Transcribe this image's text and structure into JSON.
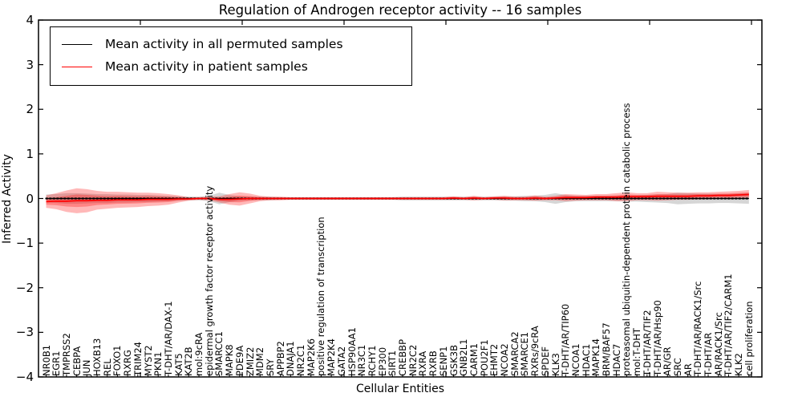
{
  "chart_data": {
    "type": "line",
    "title": "Regulation of Androgen receptor activity -- 16 samples",
    "xlabel": "Cellular Entities",
    "ylabel": "Inferred Activity",
    "ylim": [
      -4,
      4
    ],
    "yticks": [
      4,
      3,
      2,
      1,
      0,
      -1,
      -2,
      -3,
      -4
    ],
    "x_major_tick_every": 10,
    "legend_position": "upper left",
    "grid": false,
    "colors": {
      "permuted": "#000000",
      "patient": "#ff0000",
      "permuted_band": "rgba(128,128,128,0.32)",
      "patient_band": "rgba(255,0,0,0.28)",
      "background": "#ffffff"
    },
    "categories": [
      "NR0B1",
      "EGR1",
      "TMPRSS2",
      "CEBPA",
      "JUN",
      "HOXB13",
      "REL",
      "FOXO1",
      "RXRG",
      "TRIM24",
      "MYST2",
      "PKN1",
      "T-DHT/AR/DAX-1",
      "KAT5",
      "KAT2B",
      "mol:9cRA",
      "epidermal growth factor receptor activity",
      "SMARCC1",
      "MAPK8",
      "PDE9A",
      "ZMIZ2",
      "MDM2",
      "SRY",
      "APPBP2",
      "DNAJA1",
      "NR2C1",
      "MAP2K6",
      "positive regulation of transcription",
      "MAP2K4",
      "GATA2",
      "HSP90AA1",
      "NR3C1",
      "RCHY1",
      "EP300",
      "SIRT1",
      "CREBBP",
      "NR2C2",
      "RXRA",
      "RXRB",
      "SENP1",
      "GSK3B",
      "GNB2L1",
      "CARM1",
      "POU2F1",
      "EHMT2",
      "NCOA2",
      "SMARCA2",
      "SMARCE1",
      "RXRs/9cRA",
      "SPDEF",
      "KLK3",
      "T-DHT/AR/TIP60",
      "NCOA1",
      "HDAC1",
      "MAPK14",
      "BRM/BAF57",
      "HDAC7",
      "proteasomal ubiquitin-dependent protein catabolic process",
      "mol:T-DHT",
      "T-DHT/AR/TIF2",
      "T-DHT/AR/Hsp90",
      "AR/GR",
      "SRC",
      "AR",
      "T-DHT/AR/RACK1/Src",
      "T-DHT/AR",
      "AR/RACK1/Src",
      "T-DHT/AR/TIF2/CARM1",
      "KLK2",
      "cell proliferation"
    ],
    "series": [
      {
        "name": "Mean activity in all permuted samples",
        "color": "#000000",
        "mean": 0,
        "std": [
          0.09,
          0.1,
          0.12,
          0.12,
          0.11,
          0.1,
          0.1,
          0.09,
          0.09,
          0.08,
          0.08,
          0.07,
          0.06,
          0.05,
          0.04,
          0.04,
          0.06,
          0.13,
          0.08,
          0.05,
          0.04,
          0.04,
          0.04,
          0.03,
          0.03,
          0.03,
          0.03,
          0.03,
          0.03,
          0.03,
          0.03,
          0.03,
          0.03,
          0.03,
          0.03,
          0.04,
          0.04,
          0.04,
          0.04,
          0.04,
          0.04,
          0.04,
          0.04,
          0.04,
          0.04,
          0.05,
          0.05,
          0.06,
          0.06,
          0.08,
          0.12,
          0.08,
          0.06,
          0.06,
          0.06,
          0.06,
          0.06,
          0.07,
          0.07,
          0.08,
          0.09,
          0.1,
          0.13,
          0.12,
          0.11,
          0.11,
          0.1,
          0.1,
          0.11,
          0.12
        ]
      },
      {
        "name": "Mean activity in patient samples",
        "color": "#ff0000",
        "mean": [
          -0.07,
          -0.06,
          -0.06,
          -0.05,
          -0.05,
          -0.04,
          -0.04,
          -0.03,
          -0.03,
          -0.03,
          -0.02,
          -0.02,
          -0.02,
          -0.01,
          -0.01,
          0,
          0,
          -0.02,
          -0.02,
          -0.01,
          0,
          0,
          0,
          0,
          0,
          0,
          0,
          0,
          0,
          0,
          0,
          0,
          0,
          0,
          0,
          0,
          0,
          0,
          0,
          0,
          0.01,
          0,
          0.01,
          0,
          0.01,
          0.01,
          0,
          0,
          0.01,
          0,
          0.01,
          0.02,
          0.02,
          0.02,
          0.03,
          0.03,
          0.03,
          0.04,
          0.04,
          0.04,
          0.05,
          0.05,
          0.05,
          0.05,
          0.06,
          0.06,
          0.07,
          0.07,
          0.08,
          0.09
        ],
        "std": [
          0.14,
          0.18,
          0.24,
          0.28,
          0.26,
          0.21,
          0.19,
          0.18,
          0.17,
          0.16,
          0.15,
          0.14,
          0.12,
          0.08,
          0.04,
          0.03,
          0.04,
          0.07,
          0.12,
          0.15,
          0.11,
          0.06,
          0.04,
          0.04,
          0.03,
          0.03,
          0.03,
          0.03,
          0.03,
          0.03,
          0.03,
          0.03,
          0.03,
          0.03,
          0.03,
          0.03,
          0.03,
          0.03,
          0.03,
          0.03,
          0.04,
          0.03,
          0.05,
          0.03,
          0.04,
          0.05,
          0.04,
          0.04,
          0.06,
          0.04,
          0.05,
          0.08,
          0.07,
          0.06,
          0.07,
          0.07,
          0.09,
          0.1,
          0.08,
          0.08,
          0.1,
          0.09,
          0.08,
          0.08,
          0.08,
          0.08,
          0.08,
          0.09,
          0.09,
          0.1
        ]
      }
    ]
  }
}
